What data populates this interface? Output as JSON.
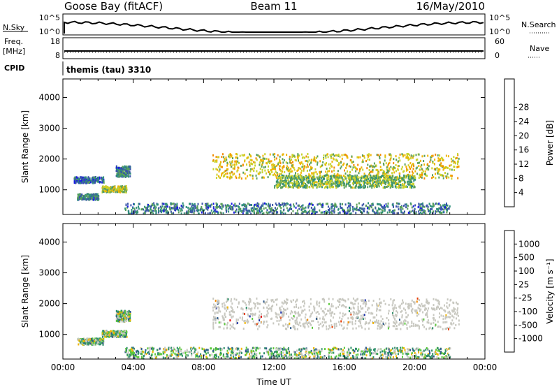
{
  "header": {
    "station": "Goose Bay (fitACF)",
    "beam": "Beam 11",
    "date": "16/May/2010"
  },
  "top_panels": {
    "nsky_label": "N.Sky",
    "nsky_ticks": [
      "10^5",
      "10^0"
    ],
    "nsearch_label": "N.Search",
    "freq_label_1": "Freq.",
    "freq_label_2": "[MHz]",
    "freq_ticks": [
      "18",
      "8"
    ],
    "nave_ticks": [
      "60",
      "0"
    ],
    "nave_label": "Nave",
    "cpid_label": "CPID",
    "cpid_value": "themis (tau) 3310"
  },
  "chart_data": [
    {
      "type": "heatmap",
      "name": "power-panel",
      "ylabel": "Slant Range [km]",
      "xlabel": "",
      "xlim": [
        0,
        24
      ],
      "ylim": [
        200,
        4600
      ],
      "yticks": [
        "1000",
        "2000",
        "3000",
        "4000"
      ],
      "colorbar": {
        "label": "Power [dB]",
        "ticks": [
          "4",
          "8",
          "12",
          "16",
          "20",
          "24",
          "28"
        ],
        "colors": [
          "#1a1ae6",
          "#3a55a8",
          "#2f8f7a",
          "#5aa05a",
          "#c8d22a",
          "#f0b400",
          "#f08a00",
          "#e63c00",
          "#e60000"
        ]
      },
      "regions": [
        {
          "t": [
            0.8,
            2.0
          ],
          "r": [
            700,
            900
          ],
          "power": 8
        },
        {
          "t": [
            0.6,
            2.3
          ],
          "r": [
            1250,
            1450
          ],
          "power": 6
        },
        {
          "t": [
            2.2,
            3.6
          ],
          "r": [
            950,
            1150
          ],
          "power": 14
        },
        {
          "t": [
            3.0,
            3.8
          ],
          "r": [
            1450,
            1800
          ],
          "power": 8
        },
        {
          "t": [
            8.5,
            22.5
          ],
          "r": [
            1400,
            2200
          ],
          "power": 16
        },
        {
          "t": [
            12.0,
            20.0
          ],
          "r": [
            1100,
            1500
          ],
          "power": 12
        },
        {
          "t": [
            3.5,
            22.0
          ],
          "r": [
            250,
            600
          ],
          "power": 8
        }
      ]
    },
    {
      "type": "heatmap",
      "name": "velocity-panel",
      "ylabel": "Slant Range [km]",
      "xlabel": "Time UT",
      "xlim": [
        0,
        24
      ],
      "ylim": [
        200,
        4600
      ],
      "xticks": [
        "00:00",
        "04:00",
        "08:00",
        "12:00",
        "16:00",
        "20:00",
        "00:00"
      ],
      "yticks": [
        "1000",
        "2000",
        "3000",
        "4000"
      ],
      "colorbar": {
        "label": "Velocity [m s⁻¹]",
        "ticks": [
          "1000",
          "500",
          "100",
          "25",
          "-25",
          "-100",
          "-500",
          "-1000"
        ],
        "colors": [
          "#1a2fa8",
          "#2f5a8a",
          "#2f8f6a",
          "#5ac83a",
          "#c8c8c0",
          "#f0b400",
          "#f08a00",
          "#e63c00",
          "#e60000"
        ]
      },
      "regions": [
        {
          "t": [
            0.8,
            2.3
          ],
          "r": [
            700,
            900
          ],
          "velocity": 100
        },
        {
          "t": [
            2.2,
            3.6
          ],
          "r": [
            950,
            1150
          ],
          "velocity": 200
        },
        {
          "t": [
            3.0,
            3.8
          ],
          "r": [
            1450,
            1800
          ],
          "velocity": -100
        },
        {
          "t": [
            8.5,
            22.5
          ],
          "r": [
            1200,
            2200
          ],
          "velocity": 0
        },
        {
          "t": [
            3.5,
            22.0
          ],
          "r": [
            250,
            600
          ],
          "velocity": 100
        }
      ]
    }
  ]
}
